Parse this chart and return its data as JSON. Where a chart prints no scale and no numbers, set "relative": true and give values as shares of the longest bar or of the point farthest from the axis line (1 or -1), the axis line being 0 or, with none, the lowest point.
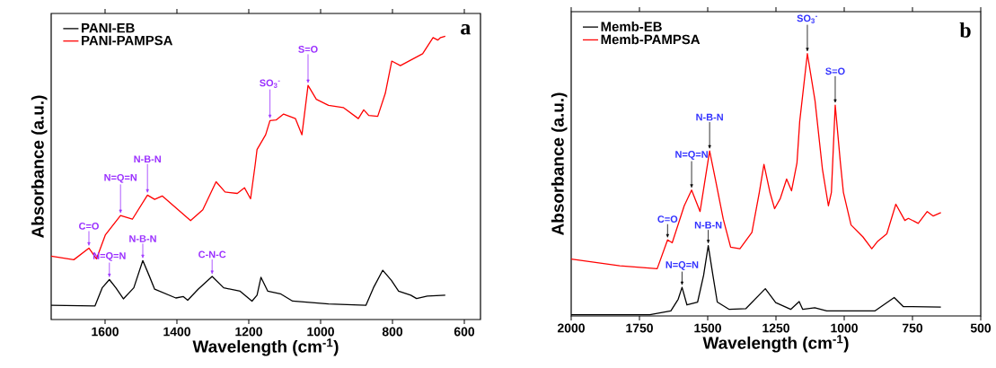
{
  "chart_data": [
    {
      "type": "line",
      "relative": true,
      "xlabel": "Wavelength (cm$^{-1}$)",
      "ylabel": "Absorbance (a.u.)",
      "xlim": [
        1750,
        555
      ],
      "xticks": [
        1600,
        1400,
        1200,
        1000,
        800,
        600
      ],
      "tick_labels": "x",
      "grid": false,
      "legend": "top left",
      "marker": "none",
      "line_style": "solid",
      "series": [
        {
          "name": "PANI-EB",
          "color": "#000000",
          "x": [
            1750,
            1628,
            1608,
            1588,
            1570,
            1549,
            1520,
            1495,
            1477,
            1462,
            1403,
            1382,
            1370,
            1341,
            1302,
            1270,
            1224,
            1191,
            1177,
            1166,
            1147,
            1112,
            1078,
            978,
            874,
            853,
            827,
            803,
            783,
            749,
            733,
            703,
            653
          ],
          "values": [
            0.05,
            0.048,
            0.112,
            0.141,
            0.112,
            0.073,
            0.112,
            0.208,
            0.154,
            0.107,
            0.076,
            0.081,
            0.068,
            0.107,
            0.152,
            0.112,
            0.1,
            0.065,
            0.086,
            0.149,
            0.1,
            0.091,
            0.065,
            0.055,
            0.05,
            0.112,
            0.174,
            0.138,
            0.1,
            0.086,
            0.074,
            0.083,
            0.086
          ]
        },
        {
          "name": "PANI-PAMPSA",
          "color": "#ff0000",
          "x": [
            1750,
            1687,
            1645,
            1624,
            1599,
            1557,
            1524,
            1482,
            1462,
            1441,
            1362,
            1328,
            1291,
            1266,
            1232,
            1212,
            1195,
            1182,
            1177,
            1153,
            1141,
            1124,
            1103,
            1070,
            1052,
            1035,
            1012,
            978,
            937,
            895,
            880,
            866,
            841,
            820,
            802,
            778,
            716,
            687,
            674,
            666,
            653
          ],
          "values": [
            0.224,
            0.211,
            0.252,
            0.214,
            0.299,
            0.367,
            0.354,
            0.439,
            0.424,
            0.436,
            0.349,
            0.387,
            0.486,
            0.45,
            0.445,
            0.465,
            0.426,
            0.548,
            0.6,
            0.652,
            0.702,
            0.704,
            0.725,
            0.709,
            0.652,
            0.826,
            0.777,
            0.756,
            0.748,
            0.709,
            0.74,
            0.72,
            0.717,
            0.798,
            0.912,
            0.896,
            0.938,
            0.995,
            0.986,
            0.995,
            1.0
          ]
        }
      ],
      "annotations": [
        "a",
        {
          "text": "C=O",
          "x": 1645,
          "y": 0.252
        },
        {
          "text": "N=Q=N",
          "x": 1557,
          "y": 0.367
        },
        {
          "text": "N-B-N",
          "x": 1482,
          "y": 0.439
        },
        {
          "text": "SO$_{3}$$^{-}$",
          "x": 1141,
          "y": 0.702
        },
        {
          "text": "S=O",
          "x": 1035,
          "y": 0.826
        },
        {
          "text": "N=Q=N",
          "x": 1588,
          "y": 0.141
        },
        {
          "text": "N-B-N",
          "x": 1495,
          "y": 0.208
        },
        {
          "text": "C-N-C",
          "x": 1302,
          "y": 0.152
        }
      ]
    },
    {
      "type": "line",
      "relative": true,
      "xlabel": "Wavelength (cm$^{-1}$)",
      "ylabel": "Absorbance (a.u.)",
      "xlim": [
        2000,
        500
      ],
      "xticks": [
        2000,
        1750,
        1500,
        1250,
        1000,
        750,
        500
      ],
      "tick_labels": "x",
      "grid": false,
      "legend": "top left",
      "marker": "none",
      "line_style": "solid",
      "series": [
        {
          "name": "Memb-EB",
          "color": "#000000",
          "x": [
            2000,
            1712,
            1635,
            1608,
            1594,
            1576,
            1537,
            1515,
            1498,
            1481,
            1465,
            1421,
            1360,
            1289,
            1251,
            1196,
            1165,
            1152,
            1108,
            1064,
            888,
            817,
            784,
            646
          ],
          "values": [
            0.005,
            0.005,
            0.019,
            0.064,
            0.109,
            0.042,
            0.053,
            0.155,
            0.268,
            0.155,
            0.053,
            0.025,
            0.028,
            0.104,
            0.051,
            0.025,
            0.055,
            0.025,
            0.031,
            0.019,
            0.019,
            0.07,
            0.036,
            0.034
          ]
        },
        {
          "name": "Memb-PAMPSA",
          "color": "#ff0000",
          "x": [
            2000,
            1822,
            1685,
            1647,
            1630,
            1586,
            1559,
            1528,
            1493,
            1471,
            1443,
            1416,
            1382,
            1338,
            1311,
            1294,
            1272,
            1255,
            1234,
            1211,
            1193,
            1173,
            1163,
            1135,
            1107,
            1080,
            1058,
            1047,
            1033,
            1014,
            1003,
            975,
            932,
            899,
            877,
            844,
            811,
            778,
            765,
            729,
            696,
            674,
            646
          ],
          "values": [
            0.217,
            0.191,
            0.18,
            0.29,
            0.279,
            0.42,
            0.48,
            0.398,
            0.629,
            0.516,
            0.369,
            0.262,
            0.256,
            0.319,
            0.471,
            0.578,
            0.471,
            0.409,
            0.448,
            0.522,
            0.477,
            0.584,
            0.742,
            1.0,
            0.821,
            0.561,
            0.42,
            0.471,
            0.804,
            0.584,
            0.471,
            0.347,
            0.302,
            0.256,
            0.285,
            0.313,
            0.426,
            0.364,
            0.372,
            0.353,
            0.398,
            0.381,
            0.394
          ]
        }
      ],
      "annotations": [
        "b",
        {
          "text": "C=O",
          "x": 1647,
          "y": 0.29
        },
        {
          "text": "N=Q=N",
          "x": 1559,
          "y": 0.48
        },
        {
          "text": "N-B-N",
          "x": 1493,
          "y": 0.629
        },
        {
          "text": "SO$_{3}$$^{-}$",
          "x": 1135,
          "y": 1.0
        },
        {
          "text": "S=O",
          "x": 1033,
          "y": 0.804
        },
        {
          "text": "N-B-N",
          "x": 1498,
          "y": 0.268
        },
        {
          "text": "N=Q=N",
          "x": 1594,
          "y": 0.109
        }
      ]
    }
  ]
}
